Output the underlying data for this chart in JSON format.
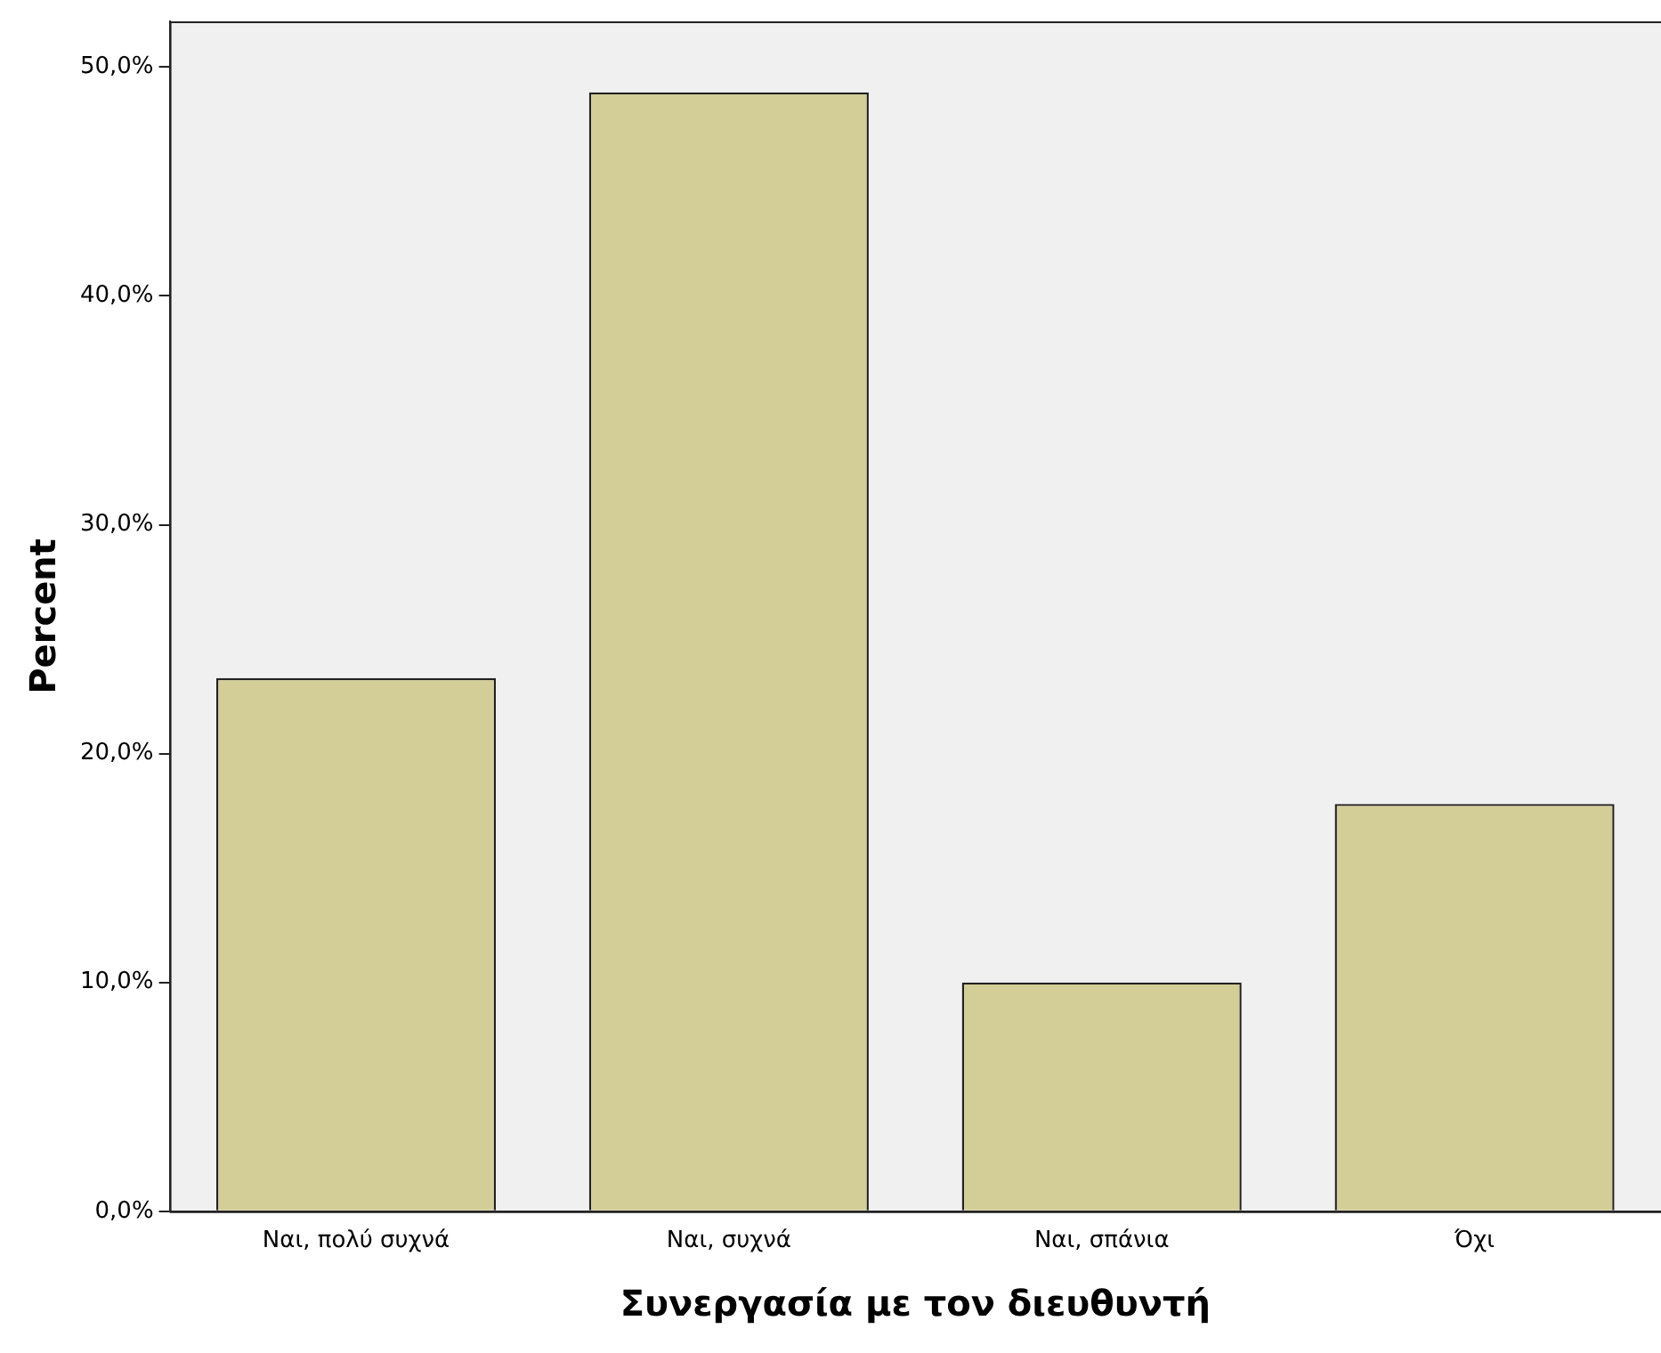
{
  "chart_data": {
    "type": "bar",
    "xlabel": "Συνεργασία με τον διευθυντή",
    "ylabel": "Percent",
    "categories": [
      "Ναι, πολύ συχνά",
      "Ναι, συχνά",
      "Ναι, σπάνια",
      "Όχι"
    ],
    "values": [
      23.3,
      48.9,
      10.0,
      17.8
    ],
    "color": "#d3ce97",
    "ylim": [
      0,
      52
    ],
    "yticks": [
      {
        "value": 0,
        "label": "0,0%"
      },
      {
        "value": 10,
        "label": "10,0%"
      },
      {
        "value": 20,
        "label": "20,0%"
      },
      {
        "value": 30,
        "label": "30,0%"
      },
      {
        "value": 40,
        "label": "40,0%"
      },
      {
        "value": 50,
        "label": "50,0%"
      }
    ],
    "grid": false,
    "legend": false
  }
}
